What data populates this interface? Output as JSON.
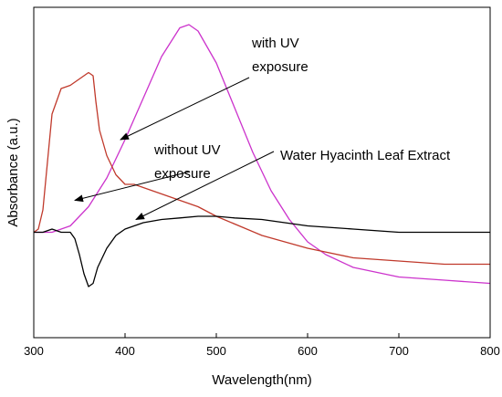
{
  "chart_data": {
    "type": "line",
    "title": "",
    "xlabel": "Wavelength(nm)",
    "ylabel": "Absorbance (a.u.)",
    "xlim": [
      300,
      800
    ],
    "x_ticks": [
      300,
      400,
      500,
      600,
      700,
      800
    ],
    "x_tick_labels": [
      "300",
      "400",
      "500",
      "600",
      "700",
      "800"
    ],
    "y_ticks_visible": false,
    "ylim": [
      0,
      1
    ],
    "grid": false,
    "legend": "none",
    "series": [
      {
        "color": "#cc33cc",
        "x": [
          300,
          320,
          340,
          360,
          380,
          400,
          420,
          440,
          460,
          470,
          480,
          500,
          520,
          540,
          560,
          580,
          600,
          620,
          650,
          700,
          750,
          800
        ],
        "y": [
          0.33,
          0.33,
          0.35,
          0.41,
          0.5,
          0.62,
          0.75,
          0.88,
          0.97,
          0.98,
          0.96,
          0.86,
          0.72,
          0.58,
          0.46,
          0.37,
          0.3,
          0.26,
          0.22,
          0.19,
          0.18,
          0.17
        ]
      },
      {
        "color": "#c0392b",
        "x": [
          300,
          305,
          310,
          315,
          320,
          330,
          340,
          350,
          360,
          365,
          368,
          372,
          380,
          390,
          400,
          410,
          420,
          440,
          460,
          480,
          500,
          550,
          600,
          650,
          700,
          750,
          800
        ],
        "y": [
          0.33,
          0.34,
          0.4,
          0.55,
          0.7,
          0.78,
          0.79,
          0.81,
          0.83,
          0.82,
          0.74,
          0.65,
          0.57,
          0.51,
          0.48,
          0.48,
          0.47,
          0.45,
          0.43,
          0.41,
          0.38,
          0.32,
          0.28,
          0.25,
          0.24,
          0.23,
          0.23
        ]
      },
      {
        "color": "#000000",
        "x": [
          300,
          310,
          320,
          330,
          340,
          345,
          350,
          355,
          360,
          365,
          370,
          380,
          390,
          400,
          420,
          440,
          460,
          480,
          500,
          520,
          550,
          600,
          650,
          700,
          750,
          800
        ],
        "y": [
          0.33,
          0.33,
          0.34,
          0.33,
          0.33,
          0.31,
          0.26,
          0.2,
          0.16,
          0.17,
          0.22,
          0.28,
          0.32,
          0.34,
          0.36,
          0.37,
          0.375,
          0.38,
          0.38,
          0.375,
          0.37,
          0.35,
          0.34,
          0.33,
          0.33,
          0.33
        ]
      }
    ],
    "annotations": [
      {
        "lines": [
          "with UV",
          "exposure"
        ],
        "points_to": [
          395,
          0.62
        ]
      },
      {
        "lines": [
          "without UV",
          "exposure"
        ],
        "points_to": [
          345,
          0.43
        ]
      },
      {
        "lines": [
          "Water Hyacinth Leaf Extract"
        ],
        "points_to": [
          412,
          0.37
        ]
      }
    ]
  }
}
